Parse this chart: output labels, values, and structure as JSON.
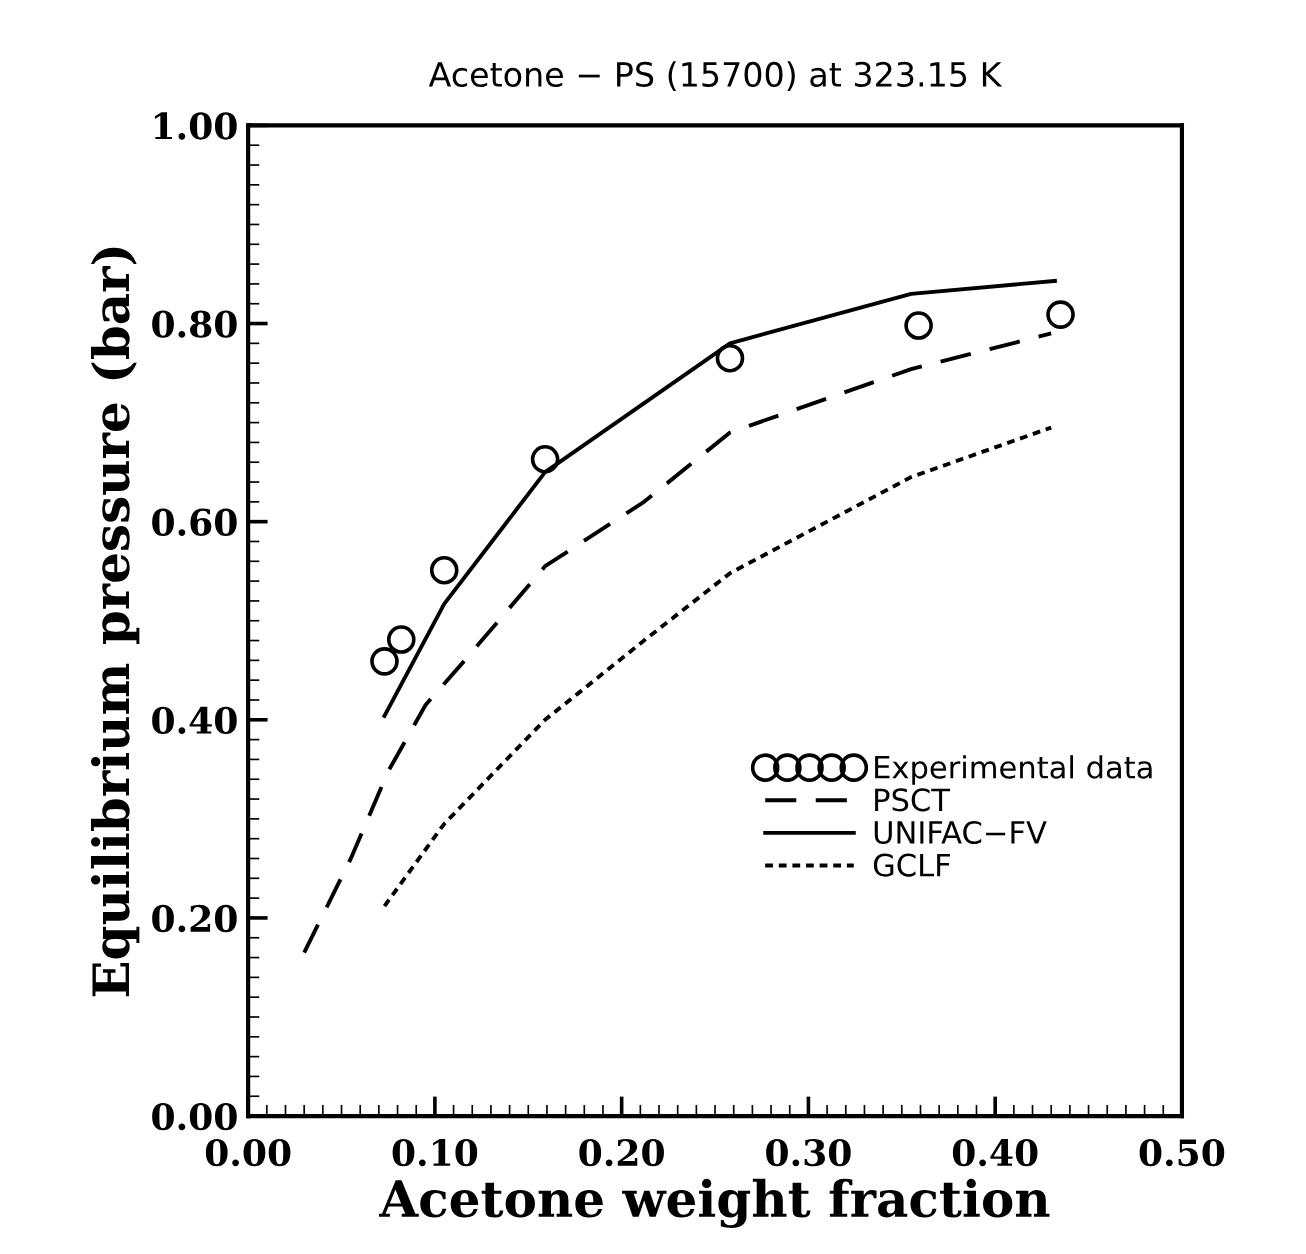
{
  "chart_data": {
    "type": "line",
    "title": "Acetone − PS (15700) at 323.15 K",
    "xlabel": "Acetone weight fraction",
    "ylabel": "Equilibrium pressure (bar)",
    "xlim": [
      0,
      0.5
    ],
    "ylim": [
      0,
      1
    ],
    "xticks": [
      {
        "value": 0,
        "label": "0.00"
      },
      {
        "value": 0.1,
        "label": "0.10"
      },
      {
        "value": 0.2,
        "label": "0.20"
      },
      {
        "value": 0.3,
        "label": "0.30"
      },
      {
        "value": 0.4,
        "label": "0.40"
      },
      {
        "value": 0.5,
        "label": "0.50"
      }
    ],
    "yticks": [
      {
        "value": 0,
        "label": "0.00"
      },
      {
        "value": 0.2,
        "label": "0.20"
      },
      {
        "value": 0.4,
        "label": "0.40"
      },
      {
        "value": 0.6,
        "label": "0.60"
      },
      {
        "value": 0.8,
        "label": "0.80"
      },
      {
        "value": 1,
        "label": "1.00"
      }
    ],
    "grid": false,
    "legend": "right",
    "series": [
      {
        "name": "Experimental data",
        "type": "scatter",
        "marker": "circle",
        "color": "#000000",
        "x": [
          0.073,
          0.082,
          0.105,
          0.159,
          0.258,
          0.359,
          0.435
        ],
        "values": [
          0.459,
          0.481,
          0.551,
          0.663,
          0.765,
          0.798,
          0.809
        ]
      },
      {
        "name": "PSCT",
        "line_style": "dashed",
        "color": "#000000",
        "x": [
          0.03,
          0.055,
          0.075,
          0.095,
          0.116,
          0.159,
          0.212,
          0.258,
          0.355,
          0.43
        ],
        "values": [
          0.165,
          0.26,
          0.348,
          0.415,
          0.46,
          0.555,
          0.62,
          0.69,
          0.754,
          0.79
        ]
      },
      {
        "name": "UNIFAC−FV",
        "line_style": "solid",
        "color": "#000000",
        "x": [
          0.073,
          0.105,
          0.159,
          0.258,
          0.355,
          0.432
        ],
        "values": [
          0.404,
          0.517,
          0.65,
          0.78,
          0.83,
          0.843
        ]
      },
      {
        "name": "GCLF",
        "line_style": "dotted",
        "color": "#000000",
        "x": [
          0.073,
          0.105,
          0.159,
          0.212,
          0.258,
          0.355,
          0.43
        ],
        "values": [
          0.212,
          0.295,
          0.4,
          0.48,
          0.548,
          0.645,
          0.695
        ]
      }
    ]
  }
}
